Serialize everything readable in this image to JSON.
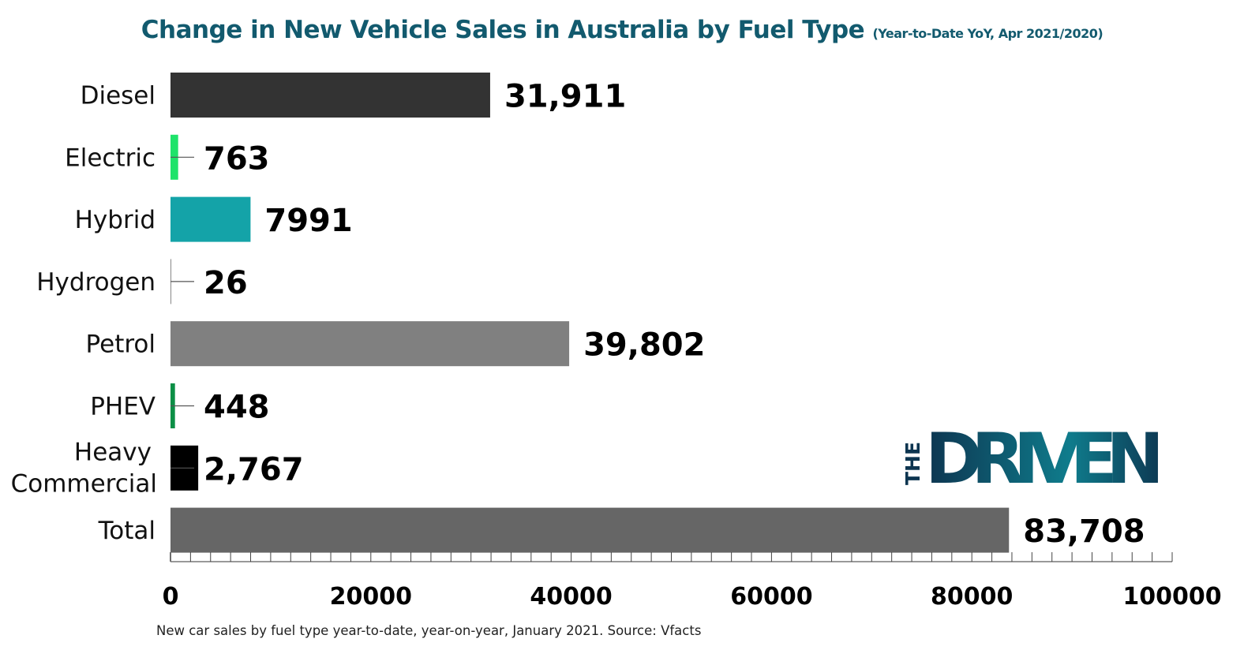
{
  "title": "Change in New Vehicle Sales in Australia by Fuel Type",
  "subtitle": "(Year-to-Date YoY, Apr 2021/2020)",
  "footer": "New car sales by fuel type year-to-date, year-on-year,  January 2021. Source: Vfacts",
  "logo": {
    "text": "THE DRIVEN",
    "colors": [
      "#0d3550",
      "#0f7c8c"
    ]
  },
  "chart_data": {
    "type": "bar",
    "orientation": "horizontal",
    "categories": [
      "Diesel",
      "Electric",
      "Hybrid",
      "Hydrogen",
      "Petrol",
      "PHEV",
      "Heavy Commercial",
      "Total"
    ],
    "values": [
      31911,
      763,
      7991,
      26,
      39802,
      448,
      2767,
      83708
    ],
    "data_labels": [
      "31,911",
      "763",
      "7991",
      "26",
      "39,802",
      "448",
      "2,767",
      "83,708"
    ],
    "colors": [
      "#333333",
      "#1ee36a",
      "#14a3a8",
      "#888888",
      "#808080",
      "#0b8f46",
      "#000000",
      "#666666"
    ],
    "xlim": [
      0,
      100000
    ],
    "xticks": [
      "0",
      "20000",
      "40000",
      "60000",
      "80000",
      "100000"
    ],
    "grid": false,
    "legend": "none"
  }
}
